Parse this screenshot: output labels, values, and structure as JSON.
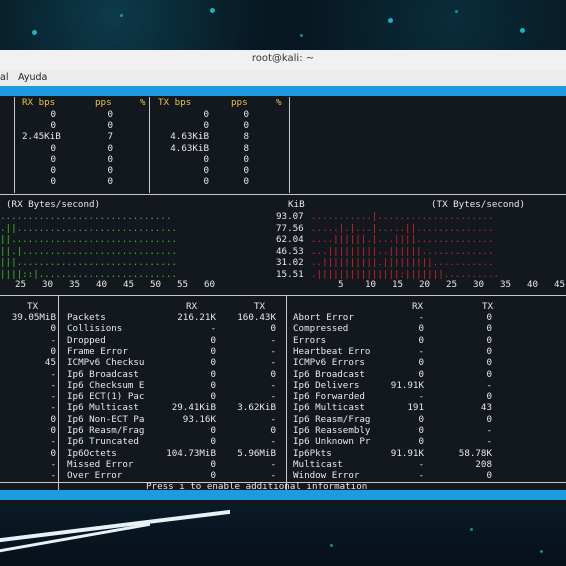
{
  "window": {
    "title": "root@kali: ~"
  },
  "menu": {
    "items": [
      "al",
      "Ayuda"
    ]
  },
  "rates": {
    "headers": {
      "rx_bps": "RX bps",
      "rx_pps": "pps",
      "rx_pct": "%",
      "tx_bps": "TX bps",
      "tx_pps": "pps",
      "tx_pct": "%"
    },
    "rows": [
      {
        "rx_bps": "0",
        "rx_pps": "0",
        "tx_bps": "0",
        "tx_pps": "0"
      },
      {
        "rx_bps": "0",
        "rx_pps": "0",
        "tx_bps": "0",
        "tx_pps": "0"
      },
      {
        "rx_bps": "2.45KiB",
        "rx_pps": "7",
        "tx_bps": "4.63KiB",
        "tx_pps": "8"
      },
      {
        "rx_bps": "0",
        "rx_pps": "0",
        "tx_bps": "4.63KiB",
        "tx_pps": "8"
      },
      {
        "rx_bps": "0",
        "rx_pps": "0",
        "tx_bps": "0",
        "tx_pps": "0"
      },
      {
        "rx_bps": "0",
        "rx_pps": "0",
        "tx_bps": "0",
        "tx_pps": "0"
      },
      {
        "rx_bps": "0",
        "rx_pps": "0",
        "tx_bps": "0",
        "tx_pps": "0"
      }
    ]
  },
  "graph": {
    "rx_title": "(RX Bytes/second)",
    "tx_title": "(TX Bytes/second)",
    "unit": "KiB",
    "scale": [
      "93.07",
      "77.56",
      "62.04",
      "46.53",
      "31.02",
      "15.51"
    ],
    "rx_lines": [
      "...............................",
      ".||.............................",
      "||..............................",
      "||.|............................",
      "|||.............................",
      "||||::|........................."
    ],
    "tx_lines": [
      "...........|.....................",
      ".....|.|...|.....||..............",
      "....||||||.|...||||..............",
      "...|||||||||..||||||.............",
      "..||||||||||.|||||||||...........",
      ".|||||||||||||||:|||||||.........."
    ],
    "rx_axis": [
      "25",
      "30",
      "35",
      "40",
      "45",
      "50",
      "55",
      "60"
    ],
    "tx_axis": [
      "5",
      "10",
      "15",
      "20",
      "25",
      "30",
      "35",
      "40",
      "45"
    ]
  },
  "details": {
    "left_col_header": "TX",
    "left_col": [
      "39.05MiB",
      "0",
      "-",
      "0",
      "45",
      "-",
      "-",
      "-",
      "-",
      "0",
      "0",
      "-",
      "0",
      "-",
      "-"
    ],
    "mid_headers": {
      "rx": "RX",
      "tx": "TX"
    },
    "mid_rows": [
      {
        "label": "Packets",
        "rx": "216.21K",
        "tx": "160.43K"
      },
      {
        "label": "Collisions",
        "rx": "-",
        "tx": "0"
      },
      {
        "label": "Dropped",
        "rx": "0",
        "tx": "-"
      },
      {
        "label": "Frame Error",
        "rx": "0",
        "tx": "-"
      },
      {
        "label": "ICMPv6 Checksu",
        "rx": "0",
        "tx": "-"
      },
      {
        "label": "Ip6 Broadcast",
        "rx": "0",
        "tx": "0"
      },
      {
        "label": "Ip6 Checksum E",
        "rx": "0",
        "tx": "-"
      },
      {
        "label": "Ip6 ECT(1) Pac",
        "rx": "0",
        "tx": "-"
      },
      {
        "label": "Ip6 Multicast",
        "rx": "29.41KiB",
        "tx": "3.62KiB"
      },
      {
        "label": "Ip6 Non-ECT Pa",
        "rx": "93.16K",
        "tx": "-"
      },
      {
        "label": "Ip6 Reasm/Frag",
        "rx": "0",
        "tx": "0"
      },
      {
        "label": "Ip6 Truncated",
        "rx": "0",
        "tx": "-"
      },
      {
        "label": "Ip6Octets",
        "rx": "104.73MiB",
        "tx": "5.96MiB"
      },
      {
        "label": "Missed Error",
        "rx": "0",
        "tx": "-"
      },
      {
        "label": "Over Error",
        "rx": "0",
        "tx": "-"
      }
    ],
    "right_headers": {
      "rx": "RX",
      "tx": "TX"
    },
    "right_rows": [
      {
        "label": "Abort Error",
        "rx": "-",
        "tx": "0"
      },
      {
        "label": "Compressed",
        "rx": "0",
        "tx": "0"
      },
      {
        "label": "Errors",
        "rx": "0",
        "tx": "0"
      },
      {
        "label": "Heartbeat Erro",
        "rx": "-",
        "tx": "0"
      },
      {
        "label": "ICMPv6 Errors",
        "rx": "0",
        "tx": "0"
      },
      {
        "label": "Ip6 Broadcast",
        "rx": "0",
        "tx": "0"
      },
      {
        "label": "Ip6 Delivers",
        "rx": "91.91K",
        "tx": "-"
      },
      {
        "label": "Ip6 Forwarded",
        "rx": "-",
        "tx": "0"
      },
      {
        "label": "Ip6 Multicast",
        "rx": "191",
        "tx": "43"
      },
      {
        "label": "Ip6 Reasm/Frag",
        "rx": "0",
        "tx": "0"
      },
      {
        "label": "Ip6 Reassembly",
        "rx": "0",
        "tx": "-"
      },
      {
        "label": "Ip6 Unknown Pr",
        "rx": "0",
        "tx": "-"
      },
      {
        "label": "Ip6Pkts",
        "rx": "91.91K",
        "tx": "58.78K"
      },
      {
        "label": "Multicast",
        "rx": "-",
        "tx": "208"
      },
      {
        "label": "Window Error",
        "rx": "-",
        "tx": "0"
      }
    ]
  },
  "footer": {
    "help": "Press i to enable additional information"
  },
  "colors": {
    "accent_bar": "#1e9be0",
    "header_yellow": "#e6c24a",
    "rx_graph": "#3cc41c",
    "tx_graph": "#d8262a"
  }
}
